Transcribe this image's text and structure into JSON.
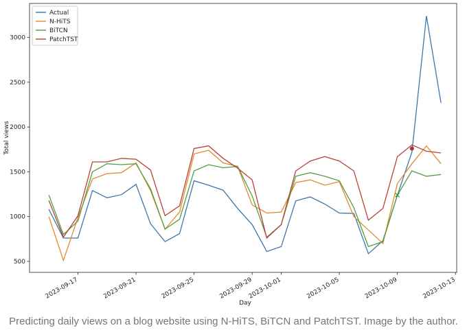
{
  "chart_data": {
    "type": "line",
    "xlabel": "Day",
    "ylabel": "Total views",
    "x": [
      "2023-09-15",
      "2023-09-16",
      "2023-09-17",
      "2023-09-18",
      "2023-09-19",
      "2023-09-20",
      "2023-09-21",
      "2023-09-22",
      "2023-09-23",
      "2023-09-24",
      "2023-09-25",
      "2023-09-26",
      "2023-09-27",
      "2023-09-28",
      "2023-09-29",
      "2023-09-30",
      "2023-10-01",
      "2023-10-02",
      "2023-10-03",
      "2023-10-04",
      "2023-10-05",
      "2023-10-06",
      "2023-10-07",
      "2023-10-08",
      "2023-10-09",
      "2023-10-10",
      "2023-10-11",
      "2023-10-12"
    ],
    "series": [
      {
        "name": "Actual",
        "color": "#3b75af",
        "values": [
          1080,
          760,
          760,
          1290,
          1210,
          1245,
          1360,
          920,
          720,
          810,
          1400,
          1350,
          1295,
          1090,
          910,
          610,
          665,
          1175,
          1220,
          1140,
          1040,
          1035,
          585,
          730,
          1240,
          1720,
          3240,
          2270
        ]
      },
      {
        "name": "N-HiTS",
        "color": "#e08a2e",
        "values": [
          1000,
          510,
          990,
          1420,
          1480,
          1490,
          1600,
          1290,
          860,
          1050,
          1700,
          1740,
          1600,
          1560,
          1130,
          1040,
          1050,
          1380,
          1410,
          1350,
          1390,
          1000,
          850,
          700,
          1370,
          1590,
          1790,
          1590
        ]
      },
      {
        "name": "BiTCN",
        "color": "#519e3e",
        "values": [
          1240,
          800,
          950,
          1500,
          1590,
          1580,
          1590,
          1310,
          860,
          970,
          1510,
          1580,
          1545,
          1560,
          1230,
          770,
          910,
          1450,
          1490,
          1450,
          1400,
          1100,
          665,
          720,
          1240,
          1510,
          1450,
          1470
        ]
      },
      {
        "name": "PatchTST",
        "color": "#b8403a",
        "values": [
          1180,
          770,
          1010,
          1610,
          1610,
          1650,
          1640,
          1520,
          1010,
          1120,
          1760,
          1790,
          1650,
          1540,
          1410,
          760,
          910,
          1510,
          1620,
          1670,
          1620,
          1510,
          960,
          1090,
          1670,
          1800,
          1730,
          1710
        ]
      }
    ],
    "markers": [
      {
        "x": "2023-10-10",
        "y": 1760,
        "color": "#a0303a",
        "marker": "o"
      },
      {
        "x": "2023-10-09",
        "y": 1240,
        "color": "#3d8f3d",
        "marker": "x"
      }
    ],
    "xlim": [
      "2023-09-13T16:00",
      "2023-10-13T02:00"
    ],
    "xticks": [
      "2023-09-17",
      "2023-09-21",
      "2023-09-25",
      "2023-09-29",
      "2023-10-01",
      "2023-10-05",
      "2023-10-09",
      "2023-10-13"
    ],
    "ylim": [
      377,
      3380
    ],
    "yticks": [
      500,
      1000,
      1500,
      2000,
      2500,
      3000
    ],
    "legend": "upper left",
    "caption": "Predicting daily views on a blog website using N-HiTS, BiTCN and PatchTST. Image by the author."
  }
}
